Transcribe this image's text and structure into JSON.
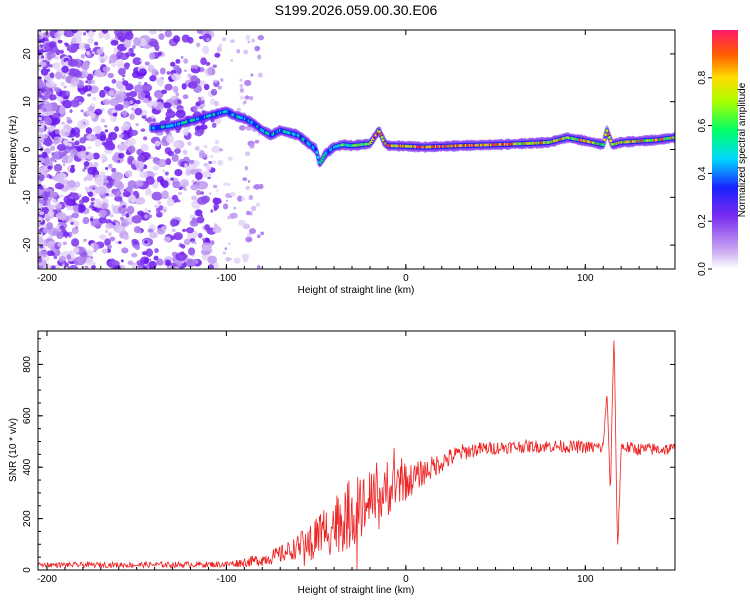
{
  "title": "S199.2026.059.00.30.E06",
  "colors": {
    "snr_line": "#ee2222",
    "axis": "#000000",
    "frame_bg": "#ffffff"
  },
  "chart_data": [
    {
      "type": "heatmap",
      "name": "spectrogram",
      "xlabel": "Height of straight line (km)",
      "ylabel": "Frequency (Hz)",
      "xlim": [
        -205,
        150
      ],
      "ylim": [
        -25,
        25
      ],
      "xticks": [
        -200,
        -100,
        0,
        100
      ],
      "yticks": [
        -20,
        -10,
        0,
        10,
        20
      ],
      "ridge": [
        [
          -140,
          4.5
        ],
        [
          -130,
          5
        ],
        [
          -120,
          6
        ],
        [
          -110,
          7
        ],
        [
          -100,
          8
        ],
        [
          -95,
          7
        ],
        [
          -90,
          6.5
        ],
        [
          -85,
          5.5
        ],
        [
          -80,
          4
        ],
        [
          -75,
          3
        ],
        [
          -70,
          4
        ],
        [
          -65,
          3.5
        ],
        [
          -60,
          3
        ],
        [
          -55,
          1.5
        ],
        [
          -50,
          0
        ],
        [
          -48,
          -3
        ],
        [
          -45,
          -1
        ],
        [
          -40,
          0.5
        ],
        [
          -35,
          1
        ],
        [
          -30,
          0.8
        ],
        [
          -25,
          1
        ],
        [
          -20,
          1.2
        ],
        [
          -15,
          4
        ],
        [
          -12,
          1.5
        ],
        [
          -10,
          0.8
        ],
        [
          0,
          0.7
        ],
        [
          10,
          0.5
        ],
        [
          30,
          0.8
        ],
        [
          50,
          1
        ],
        [
          70,
          1.3
        ],
        [
          80,
          1.5
        ],
        [
          90,
          2.5
        ],
        [
          100,
          1.8
        ],
        [
          110,
          1
        ],
        [
          112,
          4
        ],
        [
          115,
          1
        ],
        [
          120,
          1.5
        ],
        [
          140,
          2
        ],
        [
          150,
          2.5
        ]
      ],
      "colorbar": {
        "label": "Normalized spectral amplitude",
        "ticks": [
          0.0,
          0.2,
          0.4,
          0.6,
          0.8
        ],
        "range": [
          0,
          1
        ]
      }
    },
    {
      "type": "line",
      "name": "snr",
      "xlabel": "Height of straight line (km)",
      "ylabel": "SNR (10 * v/v)",
      "xlim": [
        -205,
        150
      ],
      "ylim": [
        0,
        930
      ],
      "xticks": [
        -200,
        -100,
        0,
        100
      ],
      "yticks": [
        0,
        200,
        400,
        600,
        800
      ],
      "envelope": [
        [
          -205,
          20
        ],
        [
          -150,
          20
        ],
        [
          -100,
          22
        ],
        [
          -90,
          30
        ],
        [
          -80,
          40
        ],
        [
          -70,
          60
        ],
        [
          -60,
          90
        ],
        [
          -50,
          130
        ],
        [
          -40,
          180
        ],
        [
          -30,
          220
        ],
        [
          -20,
          260
        ],
        [
          -10,
          300
        ],
        [
          0,
          340
        ],
        [
          10,
          380
        ],
        [
          20,
          420
        ],
        [
          30,
          455
        ],
        [
          40,
          470
        ],
        [
          50,
          475
        ],
        [
          60,
          480
        ],
        [
          80,
          482
        ],
        [
          100,
          478
        ],
        [
          110,
          475
        ],
        [
          112,
          700
        ],
        [
          114,
          300
        ],
        [
          116,
          930
        ],
        [
          118,
          70
        ],
        [
          120,
          480
        ],
        [
          130,
          470
        ],
        [
          150,
          470
        ]
      ],
      "noise": [
        [
          -205,
          10
        ],
        [
          -100,
          12
        ],
        [
          -80,
          25
        ],
        [
          -60,
          45
        ],
        [
          -50,
          90
        ],
        [
          -40,
          120
        ],
        [
          -30,
          140
        ],
        [
          -20,
          120
        ],
        [
          -10,
          90
        ],
        [
          0,
          70
        ],
        [
          10,
          50
        ],
        [
          20,
          40
        ],
        [
          40,
          28
        ],
        [
          60,
          25
        ],
        [
          100,
          25
        ],
        [
          150,
          25
        ]
      ]
    }
  ]
}
